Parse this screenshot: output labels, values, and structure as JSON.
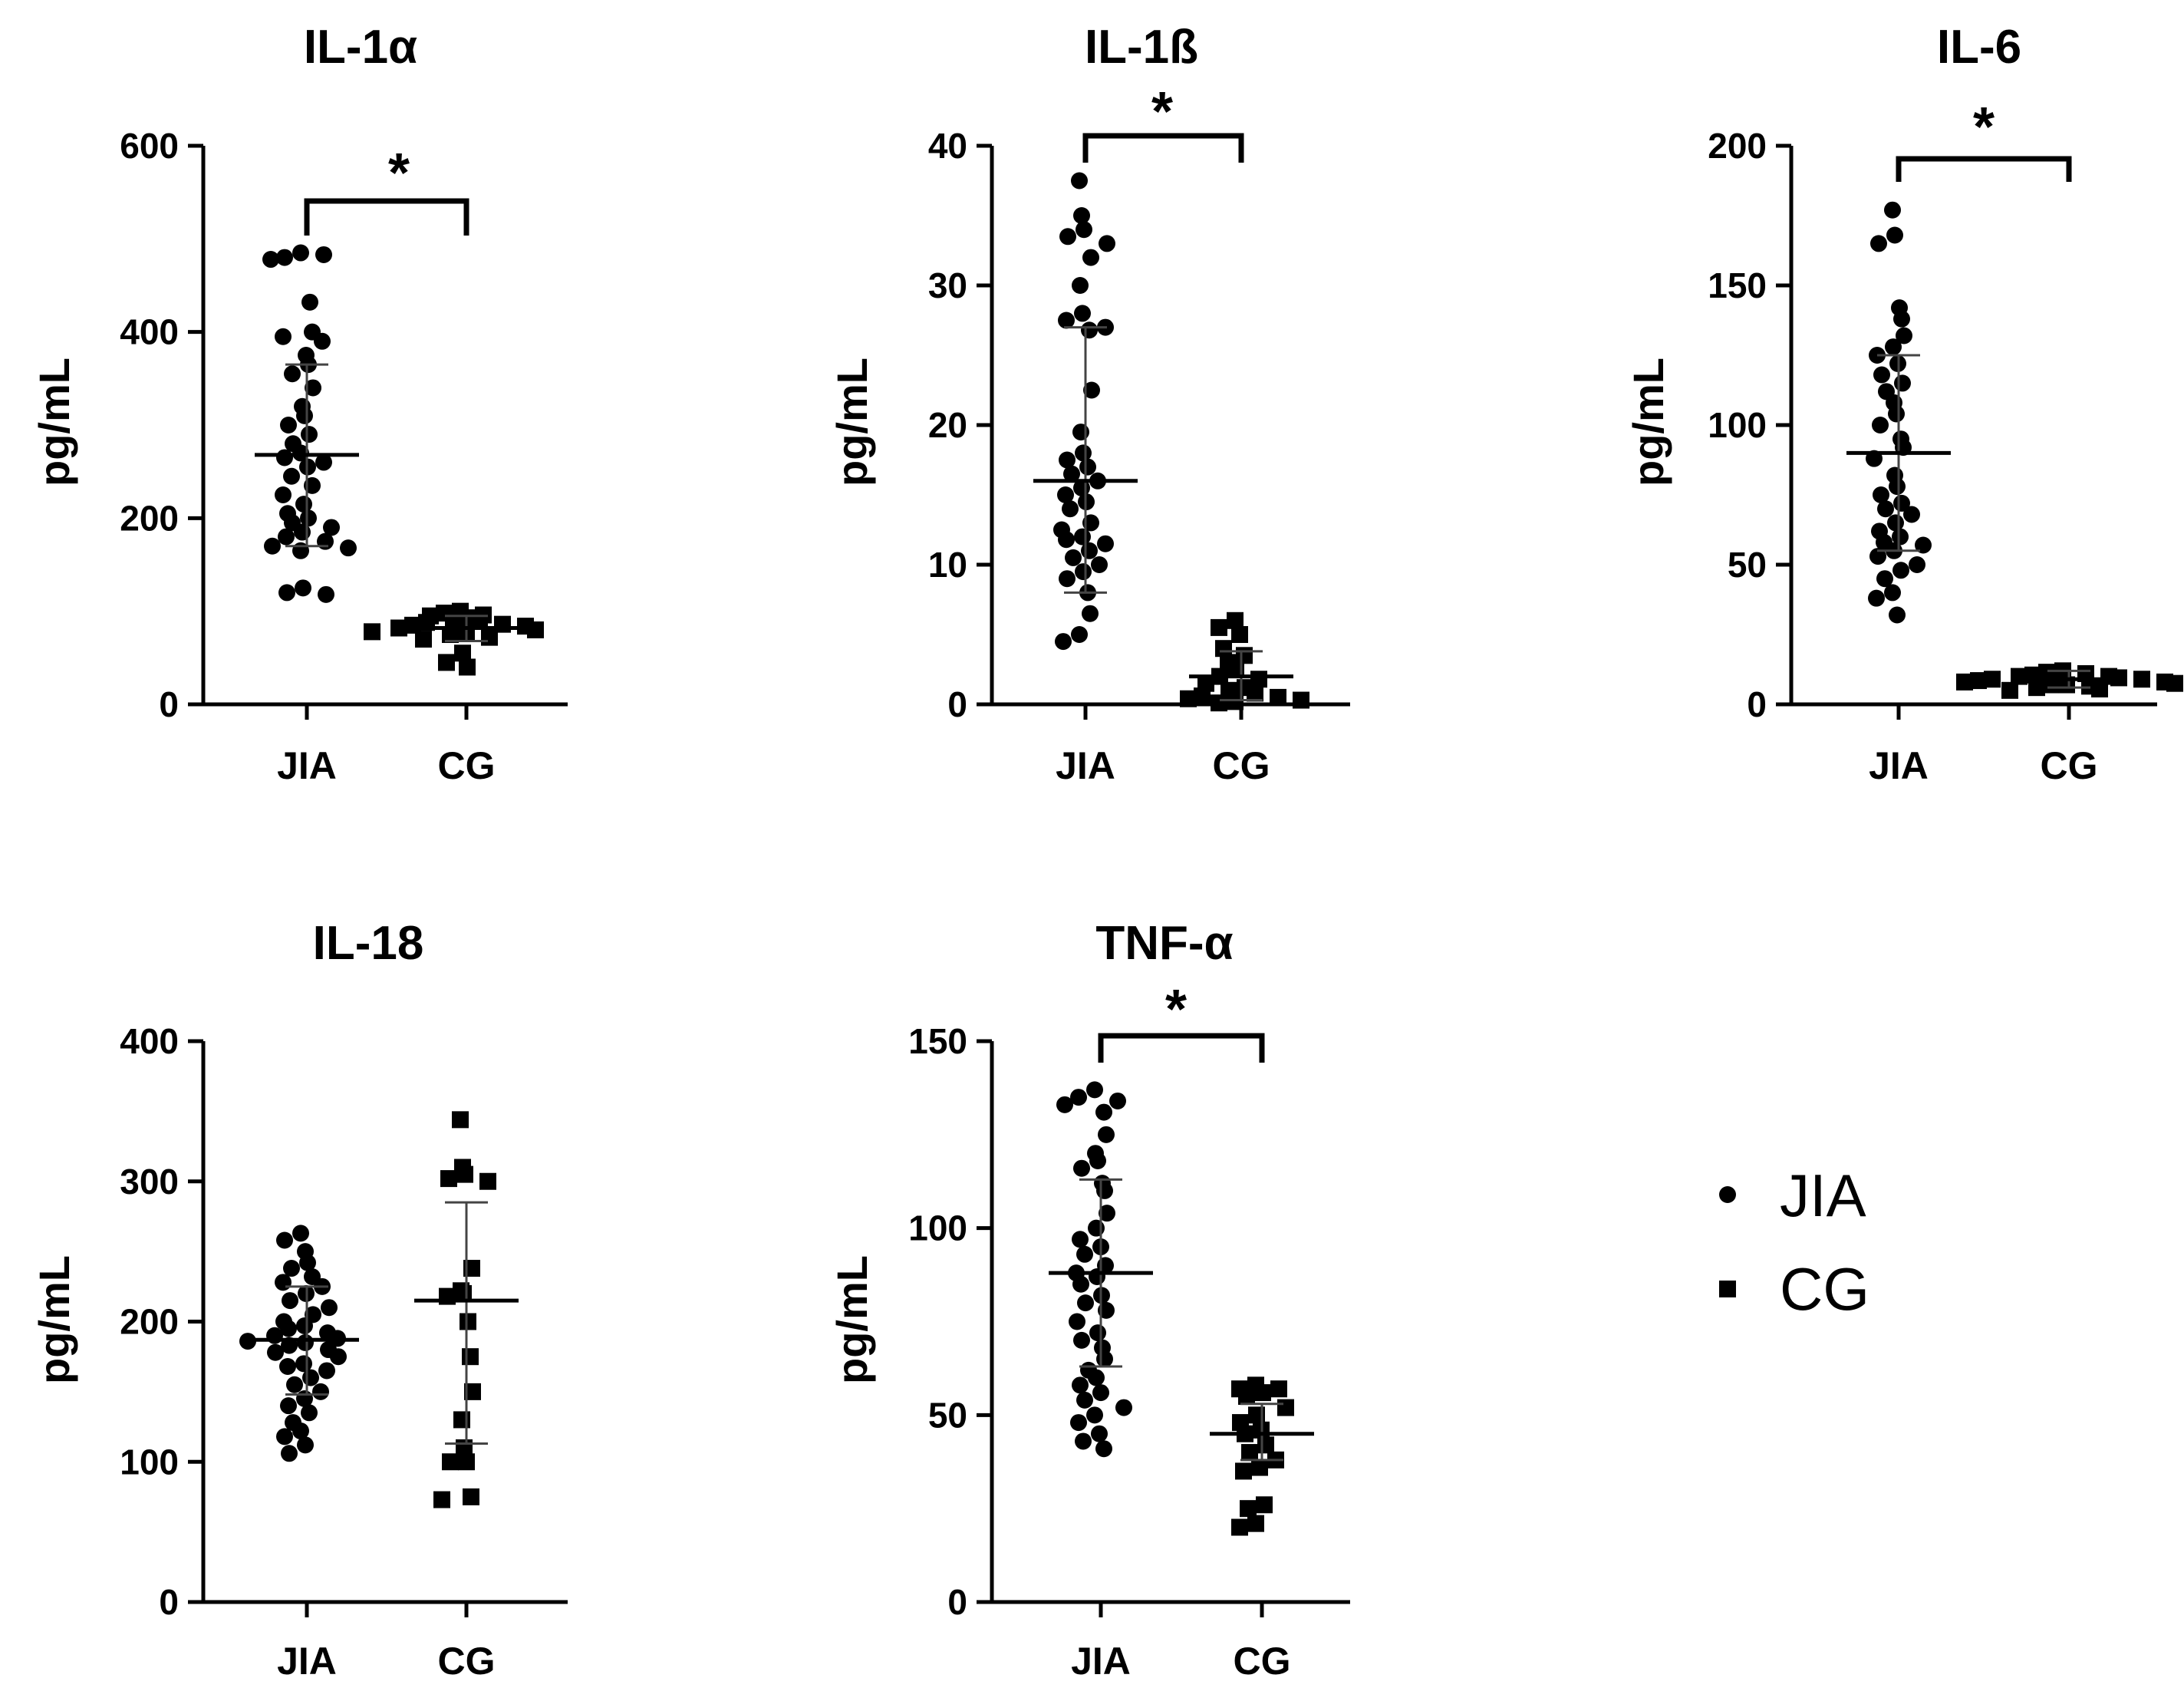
{
  "legend": {
    "items": [
      {
        "label": "JIA",
        "marker": "circle"
      },
      {
        "label": "CG",
        "marker": "square"
      }
    ]
  },
  "chart_data": [
    {
      "type": "scatter",
      "title": "IL-1α",
      "ylabel": "pg/mL",
      "xlabel": "",
      "categories": [
        "JIA",
        "CG"
      ],
      "ylim": [
        0,
        600
      ],
      "yticks": [
        0,
        200,
        400,
        600
      ],
      "significance": "*",
      "series": [
        {
          "name": "JIA",
          "marker": "circle",
          "mean": 268,
          "sd_low": 170,
          "sd_high": 365,
          "values": [
            485,
            480,
            483,
            478,
            432,
            400,
            395,
            390,
            375,
            365,
            355,
            340,
            320,
            310,
            300,
            290,
            280,
            270,
            265,
            260,
            255,
            245,
            235,
            225,
            215,
            205,
            200,
            195,
            190,
            185,
            180,
            175,
            170,
            168,
            165,
            125,
            120,
            118
          ]
        },
        {
          "name": "CG",
          "marker": "square",
          "mean": 82,
          "sd_low": 68,
          "sd_high": 95,
          "values": [
            100,
            98,
            96,
            95,
            93,
            92,
            90,
            88,
            86,
            85,
            84,
            82,
            80,
            78,
            76,
            75,
            72,
            70,
            55,
            45,
            40
          ]
        }
      ]
    },
    {
      "type": "scatter",
      "title": "IL-1ß",
      "ylabel": "pg/mL",
      "xlabel": "",
      "categories": [
        "JIA",
        "CG"
      ],
      "ylim": [
        0,
        40
      ],
      "yticks": [
        0,
        10,
        20,
        30,
        40
      ],
      "significance": "*",
      "series": [
        {
          "name": "JIA",
          "marker": "circle",
          "mean": 16,
          "sd_low": 8,
          "sd_high": 27,
          "values": [
            37.5,
            35,
            34,
            33.5,
            33,
            32,
            30,
            28,
            27.5,
            27,
            26.8,
            22.5,
            19.5,
            18,
            17.5,
            17,
            16.5,
            16,
            15.5,
            15,
            14.5,
            14,
            13,
            12.5,
            12,
            11.8,
            11.5,
            11,
            10.5,
            10,
            9.5,
            9,
            8,
            6.5,
            5,
            4.5
          ]
        },
        {
          "name": "CG",
          "marker": "square",
          "mean": 2,
          "sd_low": 0.3,
          "sd_high": 3.8,
          "values": [
            6,
            5.5,
            5,
            4,
            3.5,
            3,
            2.5,
            2,
            1.8,
            1.5,
            1.2,
            1,
            0.8,
            0.6,
            0.5,
            0.4,
            0.3,
            0.2,
            0.1
          ]
        }
      ]
    },
    {
      "type": "scatter",
      "title": "IL-6",
      "ylabel": "pg/mL",
      "xlabel": "",
      "categories": [
        "JIA",
        "CG"
      ],
      "ylim": [
        0,
        200
      ],
      "yticks": [
        0,
        50,
        100,
        150,
        200
      ],
      "significance": "*",
      "series": [
        {
          "name": "JIA",
          "marker": "circle",
          "mean": 90,
          "sd_low": 55,
          "sd_high": 125,
          "values": [
            177,
            168,
            165,
            142,
            138,
            132,
            128,
            125,
            122,
            118,
            115,
            112,
            108,
            104,
            100,
            95,
            92,
            88,
            82,
            78,
            75,
            72,
            70,
            68,
            65,
            62,
            60,
            58,
            57,
            55,
            53,
            50,
            48,
            45,
            40,
            38,
            32
          ]
        },
        {
          "name": "CG",
          "marker": "square",
          "mean": 9,
          "sd_low": 6,
          "sd_high": 12,
          "values": [
            12,
            11.5,
            11,
            10.5,
            10,
            10,
            9.5,
            9,
            9,
            8.5,
            8,
            8,
            7.5,
            7,
            7,
            6.5,
            6,
            5.5,
            5
          ]
        }
      ]
    },
    {
      "type": "scatter",
      "title": "IL-18",
      "ylabel": "pg/mL",
      "xlabel": "",
      "categories": [
        "JIA",
        "CG"
      ],
      "ylim": [
        0,
        400
      ],
      "yticks": [
        0,
        100,
        200,
        300,
        400
      ],
      "significance": "",
      "series": [
        {
          "name": "JIA",
          "marker": "circle",
          "mean": 187,
          "sd_low": 148,
          "sd_high": 225,
          "values": [
            263,
            258,
            250,
            242,
            238,
            232,
            228,
            225,
            220,
            215,
            210,
            205,
            200,
            197,
            195,
            192,
            190,
            188,
            186,
            185,
            183,
            180,
            178,
            175,
            170,
            168,
            165,
            160,
            155,
            150,
            145,
            140,
            135,
            128,
            122,
            118,
            112,
            106
          ]
        },
        {
          "name": "CG",
          "marker": "square",
          "mean": 215,
          "sd_low": 113,
          "sd_high": 285,
          "values": [
            344,
            310,
            305,
            302,
            300,
            238,
            222,
            220,
            218,
            200,
            175,
            150,
            130,
            110,
            100,
            100,
            75,
            73
          ]
        }
      ]
    },
    {
      "type": "scatter",
      "title": "TNF-α",
      "ylabel": "pg/mL",
      "xlabel": "",
      "categories": [
        "JIA",
        "CG"
      ],
      "ylim": [
        0,
        150
      ],
      "yticks": [
        0,
        50,
        100,
        150
      ],
      "significance": "*",
      "series": [
        {
          "name": "JIA",
          "marker": "circle",
          "mean": 88,
          "sd_low": 63,
          "sd_high": 113,
          "values": [
            137,
            135,
            134,
            133,
            131,
            125,
            120,
            118,
            116,
            112,
            110,
            104,
            100,
            97,
            95,
            93,
            90,
            88,
            87,
            85,
            82,
            80,
            78,
            75,
            72,
            70,
            68,
            65,
            62,
            60,
            58,
            56,
            54,
            52,
            50,
            48,
            45,
            43,
            41
          ]
        },
        {
          "name": "CG",
          "marker": "square",
          "mean": 45,
          "sd_low": 38,
          "sd_high": 53,
          "values": [
            58,
            57,
            57,
            56,
            55,
            52,
            50,
            48,
            46,
            45,
            42,
            40,
            38,
            36,
            35,
            26,
            25,
            21,
            20
          ]
        }
      ]
    }
  ]
}
